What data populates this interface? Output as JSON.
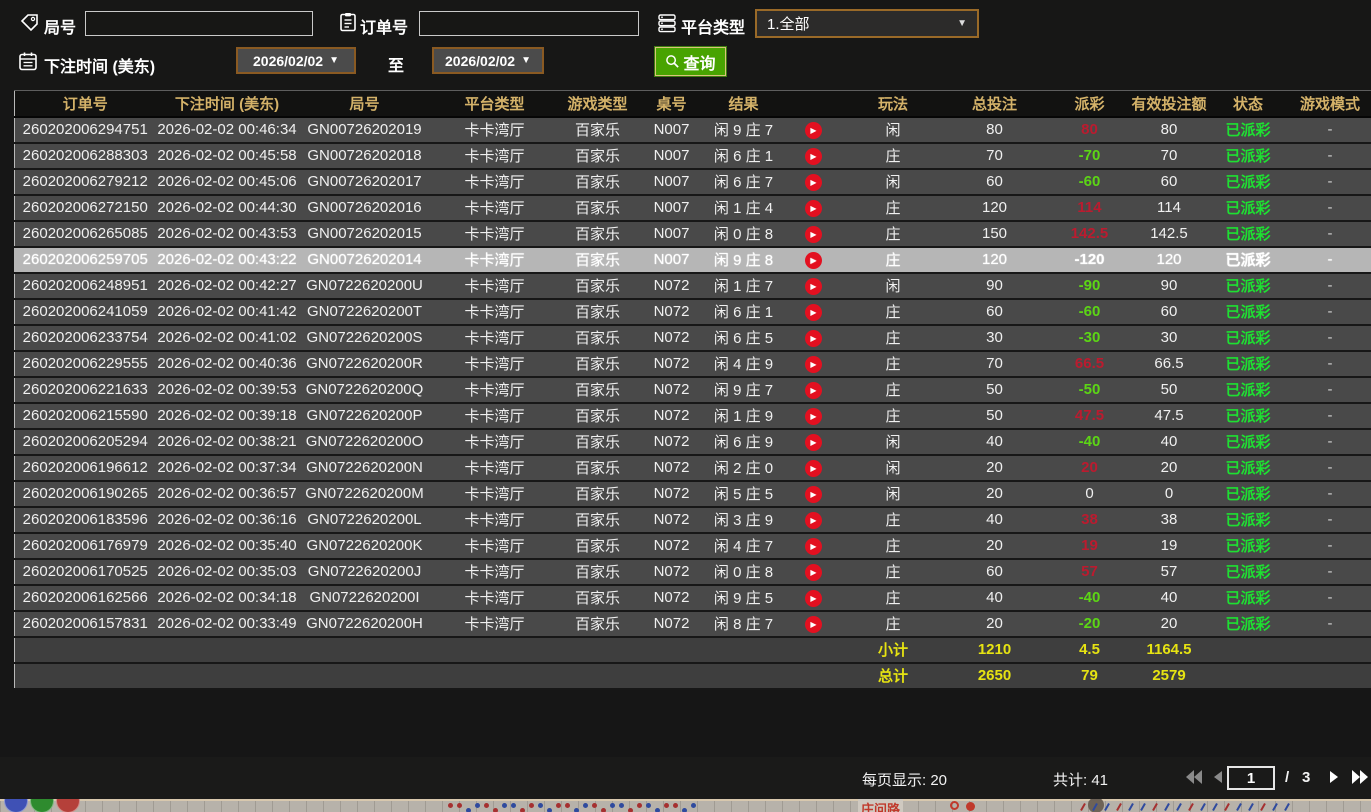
{
  "filters": {
    "round_label": "局号",
    "round_value": "",
    "order_label": "订单号",
    "order_value": "",
    "platform_label": "平台类型",
    "platform_value": "1.全部",
    "dropdown_arrow": "▼",
    "time_label": "下注时间 (美东)",
    "date_from": "2026/02/02",
    "to_label": "至",
    "date_to": "2026/02/02",
    "search_label": "查询"
  },
  "table": {
    "headers": [
      "订单号",
      "下注时间 (美东)",
      "局号",
      "平台类型",
      "游戏类型",
      "桌号",
      "结果",
      "",
      "玩法",
      "总投注",
      "派彩",
      "有效投注额",
      "状态",
      "游戏模式"
    ],
    "play_glyph": "▶",
    "rows": [
      {
        "order_no": "260202006294751",
        "bet_time": "2026-02-02 00:46:34",
        "round_no": "GN00726202019",
        "platform": "卡卡湾厅",
        "game_type": "百家乐",
        "table_no": "N007",
        "result": "闲 9 庄 7",
        "play": "闲",
        "total_bet": "80",
        "payout": "80",
        "payout_class": "pos",
        "valid_bet": "80",
        "status": "已派彩",
        "mode": "-",
        "selected": false
      },
      {
        "order_no": "260202006288303",
        "bet_time": "2026-02-02 00:45:58",
        "round_no": "GN00726202018",
        "platform": "卡卡湾厅",
        "game_type": "百家乐",
        "table_no": "N007",
        "result": "闲 6 庄 1",
        "play": "庄",
        "total_bet": "70",
        "payout": "-70",
        "payout_class": "neg",
        "valid_bet": "70",
        "status": "已派彩",
        "mode": "-",
        "selected": false
      },
      {
        "order_no": "260202006279212",
        "bet_time": "2026-02-02 00:45:06",
        "round_no": "GN00726202017",
        "platform": "卡卡湾厅",
        "game_type": "百家乐",
        "table_no": "N007",
        "result": "闲 6 庄 7",
        "play": "闲",
        "total_bet": "60",
        "payout": "-60",
        "payout_class": "neg",
        "valid_bet": "60",
        "status": "已派彩",
        "mode": "-",
        "selected": false
      },
      {
        "order_no": "260202006272150",
        "bet_time": "2026-02-02 00:44:30",
        "round_no": "GN00726202016",
        "platform": "卡卡湾厅",
        "game_type": "百家乐",
        "table_no": "N007",
        "result": "闲 1 庄 4",
        "play": "庄",
        "total_bet": "120",
        "payout": "114",
        "payout_class": "pos",
        "valid_bet": "114",
        "status": "已派彩",
        "mode": "-",
        "selected": false
      },
      {
        "order_no": "260202006265085",
        "bet_time": "2026-02-02 00:43:53",
        "round_no": "GN00726202015",
        "platform": "卡卡湾厅",
        "game_type": "百家乐",
        "table_no": "N007",
        "result": "闲 0 庄 8",
        "play": "庄",
        "total_bet": "150",
        "payout": "142.5",
        "payout_class": "pos",
        "valid_bet": "142.5",
        "status": "已派彩",
        "mode": "-",
        "selected": false
      },
      {
        "order_no": "260202006259705",
        "bet_time": "2026-02-02 00:43:22",
        "round_no": "GN00726202014",
        "platform": "卡卡湾厅",
        "game_type": "百家乐",
        "table_no": "N007",
        "result": "闲 9 庄 8",
        "play": "庄",
        "total_bet": "120",
        "payout": "-120",
        "payout_class": "neg",
        "valid_bet": "120",
        "status": "已派彩",
        "mode": "-",
        "selected": true
      },
      {
        "order_no": "260202006248951",
        "bet_time": "2026-02-02 00:42:27",
        "round_no": "GN0722620200U",
        "platform": "卡卡湾厅",
        "game_type": "百家乐",
        "table_no": "N072",
        "result": "闲 1 庄 7",
        "play": "闲",
        "total_bet": "90",
        "payout": "-90",
        "payout_class": "neg",
        "valid_bet": "90",
        "status": "已派彩",
        "mode": "-",
        "selected": false
      },
      {
        "order_no": "260202006241059",
        "bet_time": "2026-02-02 00:41:42",
        "round_no": "GN0722620200T",
        "platform": "卡卡湾厅",
        "game_type": "百家乐",
        "table_no": "N072",
        "result": "闲 6 庄 1",
        "play": "庄",
        "total_bet": "60",
        "payout": "-60",
        "payout_class": "neg",
        "valid_bet": "60",
        "status": "已派彩",
        "mode": "-",
        "selected": false
      },
      {
        "order_no": "260202006233754",
        "bet_time": "2026-02-02 00:41:02",
        "round_no": "GN0722620200S",
        "platform": "卡卡湾厅",
        "game_type": "百家乐",
        "table_no": "N072",
        "result": "闲 6 庄 5",
        "play": "庄",
        "total_bet": "30",
        "payout": "-30",
        "payout_class": "neg",
        "valid_bet": "30",
        "status": "已派彩",
        "mode": "-",
        "selected": false
      },
      {
        "order_no": "260202006229555",
        "bet_time": "2026-02-02 00:40:36",
        "round_no": "GN0722620200R",
        "platform": "卡卡湾厅",
        "game_type": "百家乐",
        "table_no": "N072",
        "result": "闲 4 庄 9",
        "play": "庄",
        "total_bet": "70",
        "payout": "66.5",
        "payout_class": "pos",
        "valid_bet": "66.5",
        "status": "已派彩",
        "mode": "-",
        "selected": false
      },
      {
        "order_no": "260202006221633",
        "bet_time": "2026-02-02 00:39:53",
        "round_no": "GN0722620200Q",
        "platform": "卡卡湾厅",
        "game_type": "百家乐",
        "table_no": "N072",
        "result": "闲 9 庄 7",
        "play": "庄",
        "total_bet": "50",
        "payout": "-50",
        "payout_class": "neg",
        "valid_bet": "50",
        "status": "已派彩",
        "mode": "-",
        "selected": false
      },
      {
        "order_no": "260202006215590",
        "bet_time": "2026-02-02 00:39:18",
        "round_no": "GN0722620200P",
        "platform": "卡卡湾厅",
        "game_type": "百家乐",
        "table_no": "N072",
        "result": "闲 1 庄 9",
        "play": "庄",
        "total_bet": "50",
        "payout": "47.5",
        "payout_class": "pos",
        "valid_bet": "47.5",
        "status": "已派彩",
        "mode": "-",
        "selected": false
      },
      {
        "order_no": "260202006205294",
        "bet_time": "2026-02-02 00:38:21",
        "round_no": "GN0722620200O",
        "platform": "卡卡湾厅",
        "game_type": "百家乐",
        "table_no": "N072",
        "result": "闲 6 庄 9",
        "play": "闲",
        "total_bet": "40",
        "payout": "-40",
        "payout_class": "neg",
        "valid_bet": "40",
        "status": "已派彩",
        "mode": "-",
        "selected": false
      },
      {
        "order_no": "260202006196612",
        "bet_time": "2026-02-02 00:37:34",
        "round_no": "GN0722620200N",
        "platform": "卡卡湾厅",
        "game_type": "百家乐",
        "table_no": "N072",
        "result": "闲 2 庄 0",
        "play": "闲",
        "total_bet": "20",
        "payout": "20",
        "payout_class": "pos",
        "valid_bet": "20",
        "status": "已派彩",
        "mode": "-",
        "selected": false
      },
      {
        "order_no": "260202006190265",
        "bet_time": "2026-02-02 00:36:57",
        "round_no": "GN0722620200M",
        "platform": "卡卡湾厅",
        "game_type": "百家乐",
        "table_no": "N072",
        "result": "闲 5 庄 5",
        "play": "闲",
        "total_bet": "20",
        "payout": "0",
        "payout_class": "zero",
        "valid_bet": "0",
        "status": "已派彩",
        "mode": "-",
        "selected": false
      },
      {
        "order_no": "260202006183596",
        "bet_time": "2026-02-02 00:36:16",
        "round_no": "GN0722620200L",
        "platform": "卡卡湾厅",
        "game_type": "百家乐",
        "table_no": "N072",
        "result": "闲 3 庄 9",
        "play": "庄",
        "total_bet": "40",
        "payout": "38",
        "payout_class": "pos",
        "valid_bet": "38",
        "status": "已派彩",
        "mode": "-",
        "selected": false
      },
      {
        "order_no": "260202006176979",
        "bet_time": "2026-02-02 00:35:40",
        "round_no": "GN0722620200K",
        "platform": "卡卡湾厅",
        "game_type": "百家乐",
        "table_no": "N072",
        "result": "闲 4 庄 7",
        "play": "庄",
        "total_bet": "20",
        "payout": "19",
        "payout_class": "pos",
        "valid_bet": "19",
        "status": "已派彩",
        "mode": "-",
        "selected": false
      },
      {
        "order_no": "260202006170525",
        "bet_time": "2026-02-02 00:35:03",
        "round_no": "GN0722620200J",
        "platform": "卡卡湾厅",
        "game_type": "百家乐",
        "table_no": "N072",
        "result": "闲 0 庄 8",
        "play": "庄",
        "total_bet": "60",
        "payout": "57",
        "payout_class": "pos",
        "valid_bet": "57",
        "status": "已派彩",
        "mode": "-",
        "selected": false
      },
      {
        "order_no": "260202006162566",
        "bet_time": "2026-02-02 00:34:18",
        "round_no": "GN0722620200I",
        "platform": "卡卡湾厅",
        "game_type": "百家乐",
        "table_no": "N072",
        "result": "闲 9 庄 5",
        "play": "庄",
        "total_bet": "40",
        "payout": "-40",
        "payout_class": "neg",
        "valid_bet": "40",
        "status": "已派彩",
        "mode": "-",
        "selected": false
      },
      {
        "order_no": "260202006157831",
        "bet_time": "2026-02-02 00:33:49",
        "round_no": "GN0722620200H",
        "platform": "卡卡湾厅",
        "game_type": "百家乐",
        "table_no": "N072",
        "result": "闲 8 庄 7",
        "play": "庄",
        "total_bet": "20",
        "payout": "-20",
        "payout_class": "neg",
        "valid_bet": "20",
        "status": "已派彩",
        "mode": "-",
        "selected": false
      }
    ],
    "subtotal": {
      "label": "小计",
      "total_bet": "1210",
      "payout": "4.5",
      "valid_bet": "1164.5"
    },
    "total": {
      "label": "总计",
      "total_bet": "2650",
      "payout": "79",
      "valid_bet": "2579"
    }
  },
  "footer": {
    "page_size_label": "每页显示: 20",
    "total_count_label": "共计: 41",
    "page_value": "1",
    "page_separator": "/",
    "page_total": "3"
  },
  "background": {
    "road_label": "庄问路"
  },
  "colors": {
    "header_gold": "#d4b269",
    "payout_win_red": "#bb1b2f",
    "payout_lose_green": "#5cd615",
    "status_green": "#1ee032",
    "summary_yellow": "#e6e312",
    "query_green": "#48a301",
    "date_border_brown": "#8a5a22",
    "selected_row_gray": "#b6b6b6",
    "row_gray": "#494949"
  }
}
